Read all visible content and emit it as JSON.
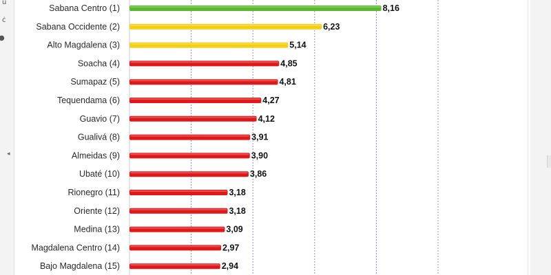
{
  "chart_data": {
    "type": "bar",
    "orientation": "horizontal",
    "categories": [
      "Sabana Centro (1)",
      "Sabana Occidente (2)",
      "Alto Magdalena (3)",
      "Soacha (4)",
      "Sumapaz (5)",
      "Tequendama (6)",
      "Guavio (7)",
      "Gualivá (8)",
      "Almeidas (9)",
      "Ubaté (10)",
      "Rionegro (11)",
      "Oriente (12)",
      "Medina (13)",
      "Magdalena Centro (14)",
      "Bajo Magdalena (15)"
    ],
    "values": [
      8.16,
      6.23,
      5.14,
      4.85,
      4.81,
      4.27,
      4.12,
      3.91,
      3.9,
      3.86,
      3.18,
      3.18,
      3.09,
      2.97,
      2.94
    ],
    "value_labels": [
      "8,16",
      "6,23",
      "5,14",
      "4,85",
      "4,81",
      "4,27",
      "4,12",
      "3,91",
      "3,90",
      "3,86",
      "3,18",
      "3,18",
      "3,09",
      "2,97",
      "2,94"
    ],
    "bar_colors": [
      "#5cb82e",
      "#f4cf11",
      "#f4cf11",
      "#e01818",
      "#e01818",
      "#e01818",
      "#e01818",
      "#e01818",
      "#e01818",
      "#e01818",
      "#e01818",
      "#e01818",
      "#e01818",
      "#e01818",
      "#e01818"
    ],
    "xlim": [
      0,
      10
    ],
    "grid": true,
    "title": "",
    "xlabel": "",
    "ylabel": ""
  },
  "ui": {
    "left_icons": [
      "partial-glyph-icon",
      "partial-glyph-icon",
      "dot-icon",
      "chevron-left-icon"
    ],
    "right_icons": [
      "scrollbar-thumb",
      "chevron-right-icon",
      "chevron-right-icon"
    ]
  }
}
